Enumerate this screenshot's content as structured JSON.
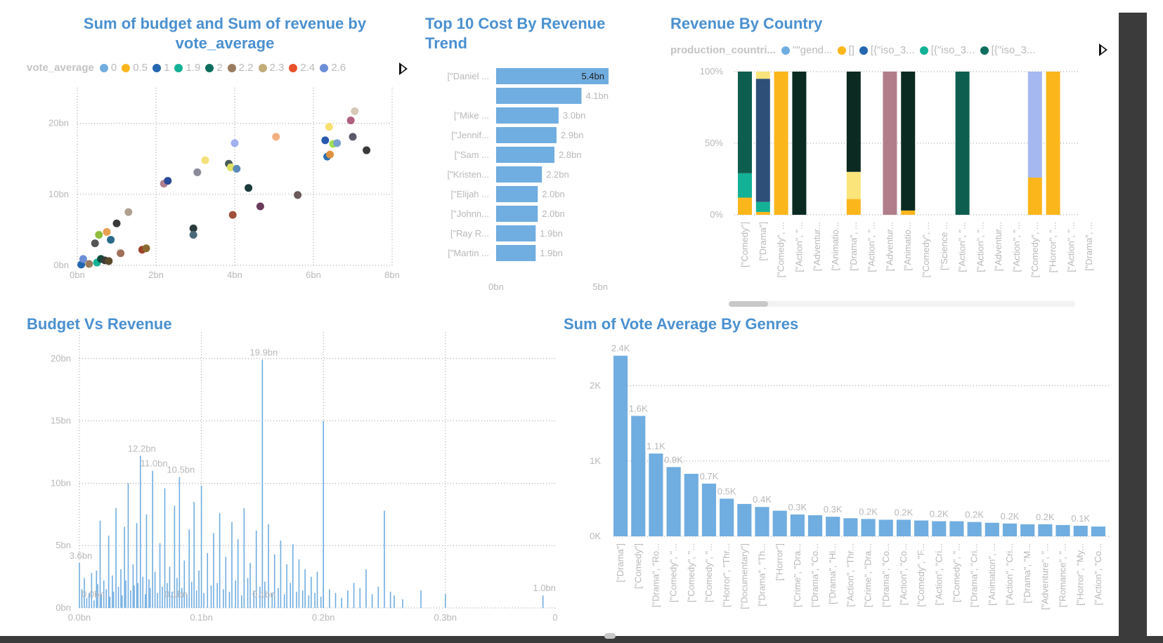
{
  "colors": {
    "accent": "#4a90d0",
    "bar": "#70ade0",
    "axis_text": "#b8b8b8",
    "grid": "#9a9a9a"
  },
  "scatter": {
    "title": "Sum of budget and Sum of revenue by vote_average",
    "legend_title": "vote_average",
    "legend": [
      {
        "label": "0",
        "color": "#70ade0"
      },
      {
        "label": "0.5",
        "color": "#fbb61c"
      },
      {
        "label": "1",
        "color": "#2566b0"
      },
      {
        "label": "1.9",
        "color": "#13b196"
      },
      {
        "label": "2",
        "color": "#0e6e5e"
      },
      {
        "label": "2.2",
        "color": "#9a7b5e"
      },
      {
        "label": "2.3",
        "color": "#c2ad7a"
      },
      {
        "label": "2.4",
        "color": "#e8502a"
      },
      {
        "label": "2.6",
        "color": "#6c8fd6"
      }
    ]
  },
  "top10": {
    "title": "Top 10 Cost By Revenue Trend"
  },
  "country": {
    "title": "Revenue By Country",
    "legend_title": "production_countri...",
    "legend": [
      {
        "label": "\"\"gend...",
        "color": "#70ade0"
      },
      {
        "label": "[]",
        "color": "#fbb61c"
      },
      {
        "label": "[{\"iso_3...",
        "color": "#2566b0"
      },
      {
        "label": "[{\"iso_3...",
        "color": "#13b196"
      },
      {
        "label": "[{\"iso_3...",
        "color": "#0e6e5e"
      }
    ]
  },
  "budget": {
    "title": "Budget Vs Revenue"
  },
  "genres": {
    "title": "Sum of Vote Average By Genres"
  },
  "chart_data": [
    {
      "type": "scatter",
      "title": "Sum of budget and Sum of revenue by vote_average",
      "xlabel": "",
      "ylabel": "",
      "xlim": [
        0,
        8
      ],
      "ylim": [
        0,
        25
      ],
      "x_ticks": [
        "0bn",
        "2bn",
        "4bn",
        "6bn",
        "8bn"
      ],
      "x_tick_values": [
        0,
        2,
        4,
        6,
        8
      ],
      "y_ticks": [
        "0bn",
        "10bn",
        "20bn"
      ],
      "y_tick_values": [
        0,
        10,
        20
      ],
      "grid": true,
      "points": [
        {
          "x": 0.1,
          "y": 0.1,
          "color": "#2566b0"
        },
        {
          "x": 0.15,
          "y": 0.9,
          "color": "#6c8fd6"
        },
        {
          "x": 0.3,
          "y": 0.2,
          "color": "#9a7b5e"
        },
        {
          "x": 0.45,
          "y": 3.1,
          "color": "#555555"
        },
        {
          "x": 0.5,
          "y": 0.4,
          "color": "#13b196"
        },
        {
          "x": 0.55,
          "y": 4.3,
          "color": "#8fbe3a"
        },
        {
          "x": 0.6,
          "y": 0.9,
          "color": "#0e4a3a"
        },
        {
          "x": 0.7,
          "y": 0.7,
          "color": "#3a3a3a"
        },
        {
          "x": 0.75,
          "y": 4.7,
          "color": "#e8a050"
        },
        {
          "x": 0.8,
          "y": 0.6,
          "color": "#5a4a2a"
        },
        {
          "x": 0.85,
          "y": 3.6,
          "color": "#2a6a8a"
        },
        {
          "x": 1.0,
          "y": 5.9,
          "color": "#3a3a3a"
        },
        {
          "x": 1.1,
          "y": 1.7,
          "color": "#a0705a"
        },
        {
          "x": 1.3,
          "y": 7.5,
          "color": "#b0a090"
        },
        {
          "x": 1.65,
          "y": 2.2,
          "color": "#a0402a"
        },
        {
          "x": 1.75,
          "y": 2.4,
          "color": "#8a6a30"
        },
        {
          "x": 2.2,
          "y": 11.5,
          "color": "#b08090"
        },
        {
          "x": 2.3,
          "y": 11.9,
          "color": "#2a4a9a"
        },
        {
          "x": 2.95,
          "y": 5.2,
          "color": "#2a3a3a"
        },
        {
          "x": 2.95,
          "y": 4.3,
          "color": "#4a6a7a"
        },
        {
          "x": 3.05,
          "y": 13.1,
          "color": "#8a8a9a"
        },
        {
          "x": 3.25,
          "y": 14.8,
          "color": "#f4e07a"
        },
        {
          "x": 3.85,
          "y": 14.3,
          "color": "#4a5a5a"
        },
        {
          "x": 3.9,
          "y": 13.8,
          "color": "#e0e060"
        },
        {
          "x": 3.95,
          "y": 7.1,
          "color": "#a0503a"
        },
        {
          "x": 4.0,
          "y": 17.2,
          "color": "#a0b0f0"
        },
        {
          "x": 4.05,
          "y": 13.6,
          "color": "#5a8aba"
        },
        {
          "x": 4.35,
          "y": 10.9,
          "color": "#1a3a3a"
        },
        {
          "x": 4.65,
          "y": 8.3,
          "color": "#6a3a5a"
        },
        {
          "x": 5.05,
          "y": 18.1,
          "color": "#f4b080"
        },
        {
          "x": 5.6,
          "y": 9.9,
          "color": "#6a5a5a"
        },
        {
          "x": 6.3,
          "y": 17.6,
          "color": "#2a5ab0"
        },
        {
          "x": 6.35,
          "y": 15.3,
          "color": "#2a70b0"
        },
        {
          "x": 6.4,
          "y": 19.5,
          "color": "#f8e070"
        },
        {
          "x": 6.42,
          "y": 15.6,
          "color": "#e09040"
        },
        {
          "x": 6.5,
          "y": 17.1,
          "color": "#a0e050"
        },
        {
          "x": 6.6,
          "y": 17.2,
          "color": "#7aa0d0"
        },
        {
          "x": 6.95,
          "y": 20.4,
          "color": "#b06080"
        },
        {
          "x": 7.0,
          "y": 18.1,
          "color": "#5a5a6a"
        },
        {
          "x": 7.05,
          "y": 21.7,
          "color": "#d8c8b8"
        },
        {
          "x": 7.35,
          "y": 16.2,
          "color": "#3a3a3a"
        }
      ]
    },
    {
      "type": "bar",
      "orientation": "horizontal",
      "title": "Top 10 Cost By Revenue Trend",
      "categories": [
        "[\"Daniel ...",
        "",
        "[\"Mike ...",
        "[\"Jennif...",
        "[\"Sam ...",
        "[\"Kristen...",
        "[\"Elijah ...",
        "[\"Johnn...",
        "[\"Ray R...",
        "[\"Martin ..."
      ],
      "values": [
        5.4,
        4.1,
        3.0,
        2.9,
        2.8,
        2.2,
        2.0,
        2.0,
        1.9,
        1.9
      ],
      "data_labels": [
        "5.4bn",
        "4.1bn",
        "3.0bn",
        "2.9bn",
        "2.8bn",
        "2.2bn",
        "2.0bn",
        "2.0bn",
        "1.9bn",
        "1.9bn"
      ],
      "xlim": [
        0,
        5.4
      ],
      "x_ticks": [
        "0bn",
        "5bn"
      ],
      "x_tick_values": [
        0,
        5
      ],
      "grid": false
    },
    {
      "type": "bar",
      "stacked_percent": true,
      "title": "Revenue By Country",
      "categories": [
        "[\"Comedy\"]",
        "[\"Drama\"]",
        "[\"Comedy\", ...",
        "[\"Action\", \"...",
        "[\"Adventur...",
        "[\"Animatio...",
        "[\"Drama\", ...",
        "[\"Action\", \"...",
        "[\"Adventur...",
        "[\"Animatio...",
        "[\"Comedy\", ...",
        "[\"Science ...",
        "[\"Action\", \"...",
        "[\"Action\", \"...",
        "[\"Adventur...",
        "[\"Action\", \"...",
        "[\"Comedy\", ...",
        "[\"Horror\", \"...",
        "[\"Action\", \"...",
        "[\"Drama\", ..."
      ],
      "y_ticks": [
        "0%",
        "50%",
        "100%"
      ],
      "y_tick_values": [
        0,
        50,
        100
      ],
      "stacks": [
        [
          {
            "v": 12,
            "color": "#fbb61c"
          },
          {
            "v": 17,
            "color": "#13b196"
          },
          {
            "v": 71,
            "color": "#0e5e50"
          }
        ],
        [
          {
            "v": 2,
            "color": "#fbb61c"
          },
          {
            "v": 7,
            "color": "#13b196"
          },
          {
            "v": 86,
            "color": "#2e4f78"
          },
          {
            "v": 5,
            "color": "#fbe47a"
          }
        ],
        [
          {
            "v": 100,
            "color": "#fbb61c"
          }
        ],
        [
          {
            "v": 100,
            "color": "#0b2a22"
          }
        ],
        [],
        [],
        [
          {
            "v": 11,
            "color": "#fbb61c"
          },
          {
            "v": 19,
            "color": "#fbe47a"
          },
          {
            "v": 70,
            "color": "#0b2a22"
          }
        ],
        [],
        [
          {
            "v": 100,
            "color": "#b07e8a"
          }
        ],
        [
          {
            "v": 3,
            "color": "#fbb61c"
          },
          {
            "v": 97,
            "color": "#0b2a22"
          }
        ],
        [],
        [],
        [
          {
            "v": 100,
            "color": "#0e5e50"
          }
        ],
        [],
        [],
        [],
        [
          {
            "v": 26,
            "color": "#fbb61c"
          },
          {
            "v": 74,
            "color": "#a5b8f0"
          }
        ],
        [
          {
            "v": 100,
            "color": "#fbb61c"
          }
        ],
        [],
        []
      ],
      "grid": true
    },
    {
      "type": "bar",
      "title": "Budget Vs Revenue",
      "xlim": [
        0,
        0.39
      ],
      "ylim": [
        0,
        21
      ],
      "x_ticks": [
        "0.0bn",
        "0.1bn",
        "0.2bn",
        "0.3bn",
        "0"
      ],
      "x_tick_values": [
        0,
        0.1,
        0.2,
        0.3,
        0.39
      ],
      "y_ticks": [
        "0bn",
        "5bn",
        "10bn",
        "15bn",
        "20bn"
      ],
      "y_tick_values": [
        0,
        5,
        10,
        15,
        20
      ],
      "grid": true,
      "points": [
        {
          "x": 0.0,
          "y": 3.6
        },
        {
          "x": 0.002,
          "y": 1.5
        },
        {
          "x": 0.004,
          "y": 2.4
        },
        {
          "x": 0.006,
          "y": 0.8
        },
        {
          "x": 0.008,
          "y": 1.2
        },
        {
          "x": 0.01,
          "y": 2.8
        },
        {
          "x": 0.012,
          "y": 0.6
        },
        {
          "x": 0.014,
          "y": 3.0
        },
        {
          "x": 0.015,
          "y": 1.9
        },
        {
          "x": 0.017,
          "y": 7.0
        },
        {
          "x": 0.018,
          "y": 1.1
        },
        {
          "x": 0.02,
          "y": 2.2
        },
        {
          "x": 0.022,
          "y": 1.5
        },
        {
          "x": 0.024,
          "y": 5.8
        },
        {
          "x": 0.025,
          "y": 0.9
        },
        {
          "x": 0.027,
          "y": 2.6
        },
        {
          "x": 0.028,
          "y": 1.3
        },
        {
          "x": 0.03,
          "y": 8.0
        },
        {
          "x": 0.032,
          "y": 1.7
        },
        {
          "x": 0.034,
          "y": 3.1
        },
        {
          "x": 0.035,
          "y": 1.0
        },
        {
          "x": 0.037,
          "y": 6.5
        },
        {
          "x": 0.038,
          "y": 2.2
        },
        {
          "x": 0.04,
          "y": 10.0
        },
        {
          "x": 0.042,
          "y": 1.4
        },
        {
          "x": 0.044,
          "y": 3.5
        },
        {
          "x": 0.045,
          "y": 1.8
        },
        {
          "x": 0.047,
          "y": 6.8
        },
        {
          "x": 0.048,
          "y": 2.0
        },
        {
          "x": 0.05,
          "y": 12.2
        },
        {
          "x": 0.052,
          "y": 2.5
        },
        {
          "x": 0.054,
          "y": 1.1
        },
        {
          "x": 0.055,
          "y": 7.5
        },
        {
          "x": 0.057,
          "y": 2.3
        },
        {
          "x": 0.058,
          "y": 1.6
        },
        {
          "x": 0.06,
          "y": 11.0
        },
        {
          "x": 0.062,
          "y": 2.9
        },
        {
          "x": 0.064,
          "y": 1.2
        },
        {
          "x": 0.066,
          "y": 5.2
        },
        {
          "x": 0.068,
          "y": 1.7
        },
        {
          "x": 0.07,
          "y": 9.6
        },
        {
          "x": 0.072,
          "y": 2.0
        },
        {
          "x": 0.074,
          "y": 3.3
        },
        {
          "x": 0.076,
          "y": 1.3
        },
        {
          "x": 0.078,
          "y": 8.2
        },
        {
          "x": 0.08,
          "y": 2.4
        },
        {
          "x": 0.082,
          "y": 10.5
        },
        {
          "x": 0.084,
          "y": 1.6
        },
        {
          "x": 0.086,
          "y": 3.8
        },
        {
          "x": 0.088,
          "y": 1.1
        },
        {
          "x": 0.09,
          "y": 6.3
        },
        {
          "x": 0.092,
          "y": 2.1
        },
        {
          "x": 0.094,
          "y": 8.5
        },
        {
          "x": 0.096,
          "y": 1.4
        },
        {
          "x": 0.098,
          "y": 3.0
        },
        {
          "x": 0.1,
          "y": 9.8
        },
        {
          "x": 0.102,
          "y": 1.2
        },
        {
          "x": 0.105,
          "y": 4.4
        },
        {
          "x": 0.108,
          "y": 1.8
        },
        {
          "x": 0.11,
          "y": 6.0
        },
        {
          "x": 0.113,
          "y": 2.0
        },
        {
          "x": 0.115,
          "y": 7.6
        },
        {
          "x": 0.118,
          "y": 1.5
        },
        {
          "x": 0.12,
          "y": 4.1
        },
        {
          "x": 0.123,
          "y": 1.3
        },
        {
          "x": 0.125,
          "y": 6.9
        },
        {
          "x": 0.128,
          "y": 2.2
        },
        {
          "x": 0.13,
          "y": 5.5
        },
        {
          "x": 0.133,
          "y": 1.0
        },
        {
          "x": 0.135,
          "y": 8.0
        },
        {
          "x": 0.138,
          "y": 2.4
        },
        {
          "x": 0.14,
          "y": 3.6
        },
        {
          "x": 0.143,
          "y": 1.4
        },
        {
          "x": 0.145,
          "y": 6.2
        },
        {
          "x": 0.148,
          "y": 1.7
        },
        {
          "x": 0.15,
          "y": 19.9
        },
        {
          "x": 0.152,
          "y": 2.1
        },
        {
          "x": 0.155,
          "y": 6.7
        },
        {
          "x": 0.158,
          "y": 1.2
        },
        {
          "x": 0.16,
          "y": 4.3
        },
        {
          "x": 0.163,
          "y": 1.6
        },
        {
          "x": 0.165,
          "y": 5.4
        },
        {
          "x": 0.168,
          "y": 1.1
        },
        {
          "x": 0.17,
          "y": 3.5
        },
        {
          "x": 0.173,
          "y": 2.0
        },
        {
          "x": 0.175,
          "y": 5.1
        },
        {
          "x": 0.178,
          "y": 1.3
        },
        {
          "x": 0.18,
          "y": 3.9
        },
        {
          "x": 0.183,
          "y": 1.4
        },
        {
          "x": 0.185,
          "y": 3.1
        },
        {
          "x": 0.188,
          "y": 1.0
        },
        {
          "x": 0.19,
          "y": 2.5
        },
        {
          "x": 0.193,
          "y": 1.2
        },
        {
          "x": 0.195,
          "y": 2.9
        },
        {
          "x": 0.198,
          "y": 0.9
        },
        {
          "x": 0.2,
          "y": 1.6
        },
        {
          "x": 0.2,
          "y": 15.0
        },
        {
          "x": 0.205,
          "y": 1.5
        },
        {
          "x": 0.21,
          "y": 1.2
        },
        {
          "x": 0.215,
          "y": 0.8
        },
        {
          "x": 0.22,
          "y": 1.4
        },
        {
          "x": 0.225,
          "y": 2.0
        },
        {
          "x": 0.23,
          "y": 1.6
        },
        {
          "x": 0.235,
          "y": 3.1
        },
        {
          "x": 0.24,
          "y": 1.1
        },
        {
          "x": 0.245,
          "y": 1.7
        },
        {
          "x": 0.25,
          "y": 7.8
        },
        {
          "x": 0.255,
          "y": 1.3
        },
        {
          "x": 0.258,
          "y": 1.0
        },
        {
          "x": 0.265,
          "y": 0.7
        },
        {
          "x": 0.28,
          "y": 1.4
        },
        {
          "x": 0.3,
          "y": 1.1
        },
        {
          "x": 0.38,
          "y": 1.0
        }
      ],
      "annotations": [
        {
          "x": 0.0,
          "y": 3.6,
          "label": "3.6bn"
        },
        {
          "x": 0.05,
          "y": 12.2,
          "label": "12.2bn"
        },
        {
          "x": 0.06,
          "y": 11.0,
          "label": "11.0bn"
        },
        {
          "x": 0.082,
          "y": 10.5,
          "label": "10.5bn"
        },
        {
          "x": 0.15,
          "y": 19.9,
          "label": "19.9bn"
        },
        {
          "x": 0.38,
          "y": 1.0,
          "label": "1.0bn"
        },
        {
          "x": 0.01,
          "y": 0.5,
          "label": "0.0bn"
        },
        {
          "x": 0.078,
          "y": 0.5,
          "label": "0.1bn"
        },
        {
          "x": 0.15,
          "y": 0.5,
          "label": "0.1bn"
        }
      ]
    },
    {
      "type": "bar",
      "title": "Sum of Vote Average By Genres",
      "categories": [
        "[\"Drama\"]",
        "[\"Comedy\"]",
        "[\"Drama\", \"Ro...",
        "[\"Comedy\", \"...",
        "[\"Comedy\", \"...",
        "[\"Comedy\", \"...",
        "[\"Horror\", \"Thr...",
        "[\"Documentary\"]",
        "[\"Drama\", \"Th...",
        "[\"Horror\"]",
        "[\"Crime\", \"Dra...",
        "[\"Drama\", \"Co...",
        "[\"Drama\", \"Hi...",
        "[\"Action\", \"Thr...",
        "[\"Crime\", \"Dra...",
        "[\"Drama\", \"Co...",
        "[\"Action\", \"Co...",
        "[\"Comedy\", \"F...",
        "[\"Action\", \"Cri...",
        "[\"Comedy\", \"...",
        "[\"Drama\", \"Cri...",
        "[\"Animation\", ...",
        "[\"Action\", \"Cri...",
        "[\"Drama\", \"M...",
        "[\"Adventure\", \"...",
        "[\"Romance\", \"...",
        "[\"Horror\", \"My...",
        "[\"Action\", \"Co..."
      ],
      "values": [
        2.4,
        1.6,
        1.1,
        0.92,
        0.83,
        0.7,
        0.5,
        0.43,
        0.39,
        0.34,
        0.29,
        0.28,
        0.26,
        0.24,
        0.23,
        0.22,
        0.22,
        0.21,
        0.2,
        0.2,
        0.19,
        0.18,
        0.17,
        0.16,
        0.16,
        0.15,
        0.14,
        0.13
      ],
      "data_labels": [
        "2.4K",
        "1.6K",
        "1.1K",
        "0.9K",
        "",
        "0.7K",
        "0.5K",
        "",
        "0.4K",
        "",
        "0.3K",
        "",
        "0.3K",
        "",
        "0.2K",
        "",
        "0.2K",
        "",
        "0.2K",
        "",
        "0.2K",
        "",
        "0.2K",
        "",
        "0.2K",
        "",
        "0.1K",
        ""
      ],
      "ylim": [
        0,
        2.5
      ],
      "y_ticks": [
        "0K",
        "1K",
        "2K"
      ],
      "y_tick_values": [
        0,
        1,
        2
      ],
      "grid": true
    }
  ]
}
